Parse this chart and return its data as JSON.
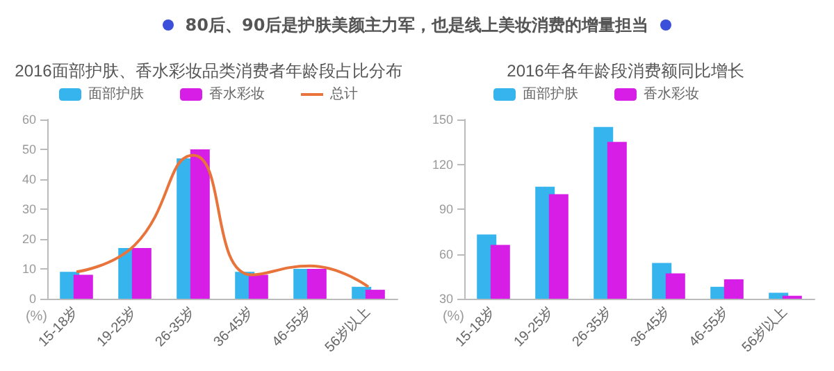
{
  "chart_data": [
    {
      "type": "other",
      "title": "80后、90后是护肤美颜主力军，也是线上美妆消费的增量担当"
    },
    {
      "type": "bar",
      "title": "2016面部护肤、香水彩妆品类消费者年龄段占比分布",
      "ylabel": "(%)",
      "categories": [
        "15-18岁",
        "19-25岁",
        "26-35岁",
        "36-45岁",
        "46-55岁",
        "56岁以上"
      ],
      "series": [
        {
          "name": "面部护肤",
          "color": "#35b4ee",
          "values": [
            9,
            17,
            47,
            9,
            10,
            4
          ]
        },
        {
          "name": "香水彩妆",
          "color": "#d61ee6",
          "values": [
            8,
            17,
            50,
            8,
            10,
            3
          ]
        },
        {
          "name": "总计",
          "type": "line",
          "color": "#e8743b",
          "values": [
            9,
            18,
            48,
            8,
            11,
            4
          ]
        }
      ],
      "ylim": [
        0,
        60
      ],
      "yticks": [
        0,
        10,
        20,
        30,
        40,
        50,
        60
      ],
      "grid": false,
      "legend": "top",
      "marker": "none"
    },
    {
      "type": "bar",
      "title": "2016年各年龄段消费额同比增长",
      "ylabel": "(%)",
      "categories": [
        "15-18岁",
        "19-25岁",
        "26-35岁",
        "36-45岁",
        "46-55岁",
        "56岁以上"
      ],
      "series": [
        {
          "name": "面部护肤",
          "color": "#35b4ee",
          "values": [
            73,
            105,
            145,
            54,
            38,
            34
          ]
        },
        {
          "name": "香水彩妆",
          "color": "#d61ee6",
          "values": [
            66,
            100,
            135,
            47,
            43,
            32
          ]
        }
      ],
      "ylim": [
        30,
        150
      ],
      "yticks": [
        30,
        60,
        90,
        120,
        150
      ],
      "grid": false,
      "legend": "top left"
    }
  ]
}
